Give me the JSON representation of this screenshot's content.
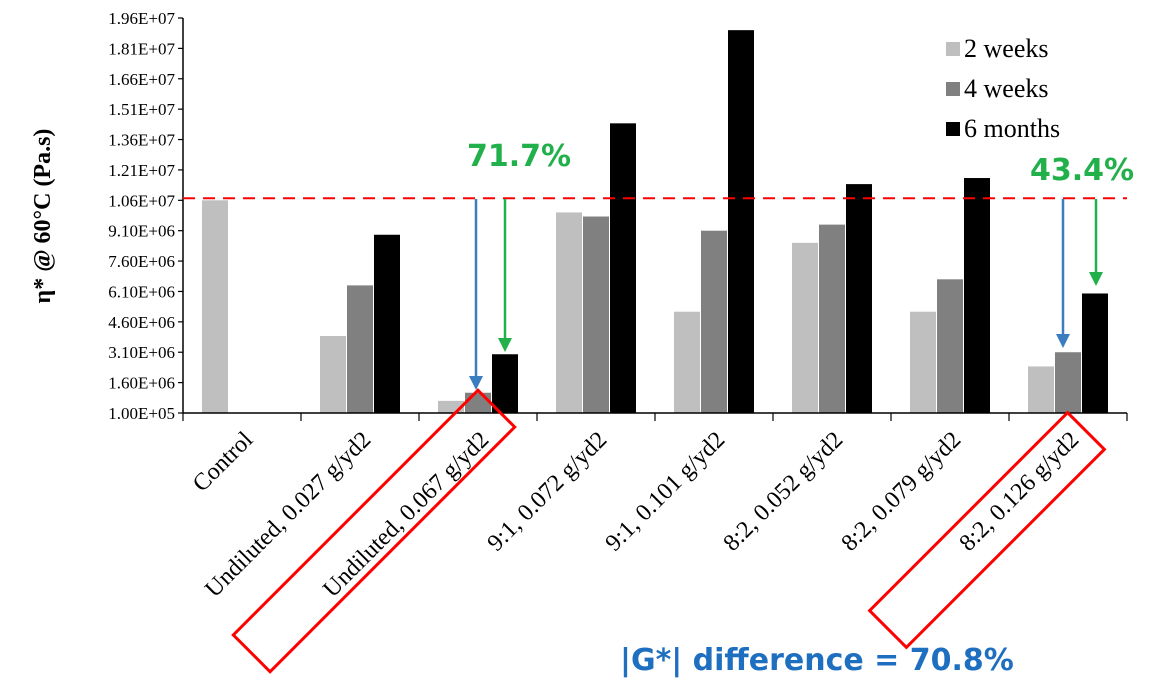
{
  "chart_data": {
    "type": "bar",
    "ylabel": "η* @ 60°C (Pa.s)",
    "ylim": [
      100000,
      19600000
    ],
    "yticks": [
      "1.00E+05",
      "1.60E+06",
      "3.10E+06",
      "4.60E+06",
      "6.10E+06",
      "7.60E+06",
      "9.10E+06",
      "1.06E+07",
      "1.21E+07",
      "1.36E+07",
      "1.51E+07",
      "1.66E+07",
      "1.81E+07",
      "1.96E+07"
    ],
    "categories": [
      "Control",
      "Undiluted, 0.027 g/yd2",
      "Undiluted, 0.067 g/yd2",
      "9:1, 0.072 g/yd2",
      "9:1, 0.101 g/yd2",
      "8:2, 0.052 g/yd2",
      "8:2, 0.079 g/yd2",
      "8:2, 0.126 g/yd2"
    ],
    "series": [
      {
        "name": "2 weeks",
        "color": "#bfbfbf",
        "values": [
          10600000,
          3900000,
          700000,
          10000000,
          5100000,
          8500000,
          5100000,
          2400000
        ]
      },
      {
        "name": "4 weeks",
        "color": "#808080",
        "values": [
          null,
          6400000,
          1100000,
          9800000,
          9100000,
          9400000,
          6700000,
          3100000
        ]
      },
      {
        "name": "6 months",
        "color": "#000000",
        "values": [
          null,
          8900000,
          3000000,
          14400000,
          19000000,
          11400000,
          11700000,
          6000000
        ]
      }
    ],
    "reference_line": {
      "value": 10700000,
      "color": "#ff0000",
      "style": "dashed"
    },
    "legend_position": "top-right",
    "grid": false,
    "annotations": {
      "pct_left": "71.7%",
      "pct_right": "43.4%",
      "difference": "|G*| difference = 70.8%",
      "highlight_color": "#ff0000",
      "pct_color": "#22b04b",
      "arrow_blue": "#3a7ebf"
    }
  }
}
